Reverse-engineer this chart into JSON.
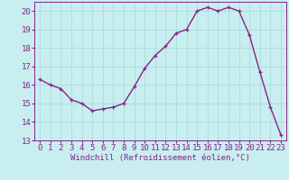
{
  "x": [
    0,
    1,
    2,
    3,
    4,
    5,
    6,
    7,
    8,
    9,
    10,
    11,
    12,
    13,
    14,
    15,
    16,
    17,
    18,
    19,
    20,
    21,
    22,
    23
  ],
  "y": [
    16.3,
    16.0,
    15.8,
    15.2,
    15.0,
    14.6,
    14.7,
    14.8,
    15.0,
    15.9,
    16.9,
    17.6,
    18.1,
    18.8,
    19.0,
    20.0,
    20.2,
    20.0,
    20.2,
    20.0,
    18.7,
    16.7,
    14.8,
    13.3
  ],
  "line_color": "#882288",
  "marker": "+",
  "bg_color": "#c8eef0",
  "grid_color": "#aadddd",
  "axis_color": "#882288",
  "xlabel": "Windchill (Refroidissement éolien,°C)",
  "xlim_min": -0.5,
  "xlim_max": 23.5,
  "ylim_min": 13,
  "ylim_max": 20.5,
  "yticks": [
    13,
    14,
    15,
    16,
    17,
    18,
    19,
    20
  ],
  "xticks": [
    0,
    1,
    2,
    3,
    4,
    5,
    6,
    7,
    8,
    9,
    10,
    11,
    12,
    13,
    14,
    15,
    16,
    17,
    18,
    19,
    20,
    21,
    22,
    23
  ],
  "xlabel_fontsize": 6.5,
  "tick_fontsize": 6.5,
  "line_width": 1.0,
  "marker_size": 3.5
}
